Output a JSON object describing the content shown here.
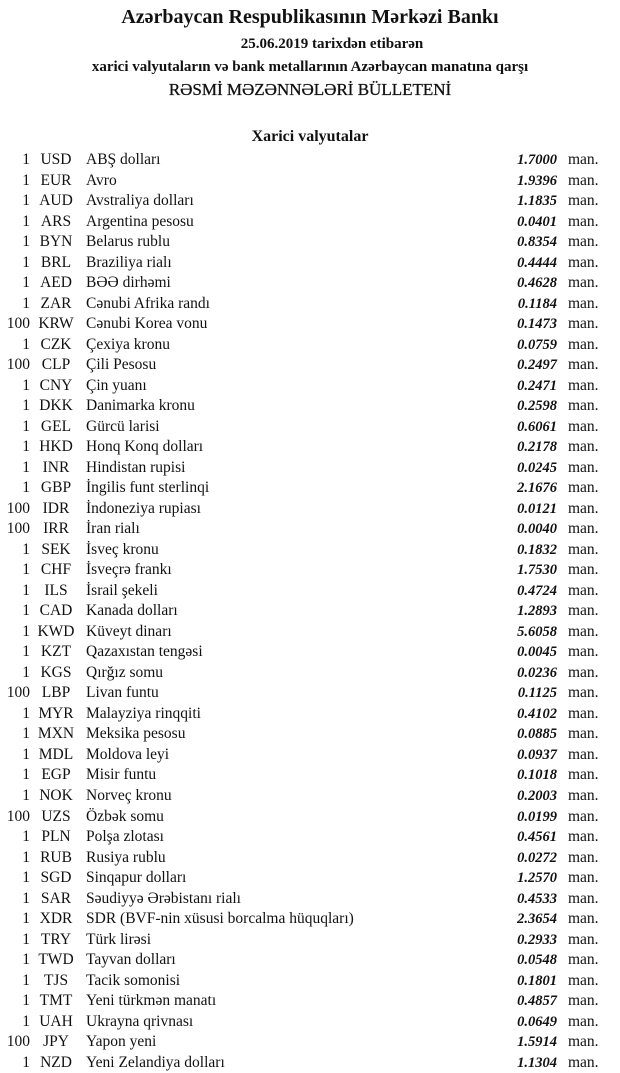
{
  "header": {
    "bank": "Azərbaycan Respublikasının Mərkəzi Bankı",
    "date_line": "25.06.2019  tarixdən etibarən",
    "subtitle": "xarici valyutaların və bank metallarının Azərbaycan manatına qarşı",
    "bulletin_title": "RƏSMİ MƏZƏNNƏLƏRİ BÜLLETENİ",
    "section_title": "Xarici valyutalar"
  },
  "rates": [
    {
      "amount": "1",
      "code": "USD",
      "name": "ABŞ dolları",
      "rate": "1.7000",
      "unit": "man."
    },
    {
      "amount": "1",
      "code": "EUR",
      "name": "Avro",
      "rate": "1.9396",
      "unit": "man."
    },
    {
      "amount": "1",
      "code": "AUD",
      "name": "Avstraliya dolları",
      "rate": "1.1835",
      "unit": "man."
    },
    {
      "amount": "1",
      "code": "ARS",
      "name": "Argentina pesosu",
      "rate": "0.0401",
      "unit": "man."
    },
    {
      "amount": "1",
      "code": "BYN",
      "name": "Belarus rublu",
      "rate": "0.8354",
      "unit": "man."
    },
    {
      "amount": "1",
      "code": "BRL",
      "name": "Braziliya rialı",
      "rate": "0.4444",
      "unit": "man."
    },
    {
      "amount": "1",
      "code": "AED",
      "name": "BƏƏ dirhəmi",
      "rate": "0.4628",
      "unit": "man."
    },
    {
      "amount": "1",
      "code": "ZAR",
      "name": "Cənubi Afrika randı",
      "rate": "0.1184",
      "unit": "man."
    },
    {
      "amount": "100",
      "code": "KRW",
      "name": "Cənubi Korea vonu",
      "rate": "0.1473",
      "unit": "man."
    },
    {
      "amount": "1",
      "code": "CZK",
      "name": "Çexiya kronu",
      "rate": "0.0759",
      "unit": "man."
    },
    {
      "amount": "100",
      "code": "CLP",
      "name": "Çili Pesosu",
      "rate": "0.2497",
      "unit": "man."
    },
    {
      "amount": "1",
      "code": "CNY",
      "name": "Çin yuanı",
      "rate": "0.2471",
      "unit": "man."
    },
    {
      "amount": "1",
      "code": "DKK",
      "name": "Danimarka kronu",
      "rate": "0.2598",
      "unit": "man."
    },
    {
      "amount": "1",
      "code": "GEL",
      "name": "Gürcü larisi",
      "rate": "0.6061",
      "unit": "man."
    },
    {
      "amount": "1",
      "code": "HKD",
      "name": "Honq Konq dolları",
      "rate": "0.2178",
      "unit": "man."
    },
    {
      "amount": "1",
      "code": "INR",
      "name": "Hindistan rupisi",
      "rate": "0.0245",
      "unit": "man."
    },
    {
      "amount": "1",
      "code": "GBP",
      "name": "İngilis funt sterlinqi",
      "rate": "2.1676",
      "unit": "man."
    },
    {
      "amount": "100",
      "code": "IDR",
      "name": "İndoneziya rupiası",
      "rate": "0.0121",
      "unit": "man."
    },
    {
      "amount": "100",
      "code": "IRR",
      "name": "İran rialı",
      "rate": "0.0040",
      "unit": "man."
    },
    {
      "amount": "1",
      "code": "SEK",
      "name": "İsveç kronu",
      "rate": "0.1832",
      "unit": "man."
    },
    {
      "amount": "1",
      "code": "CHF",
      "name": "İsveçrə frankı",
      "rate": "1.7530",
      "unit": "man."
    },
    {
      "amount": "1",
      "code": "ILS",
      "name": "İsrail şekeli",
      "rate": "0.4724",
      "unit": "man."
    },
    {
      "amount": "1",
      "code": "CAD",
      "name": "Kanada dolları",
      "rate": "1.2893",
      "unit": "man."
    },
    {
      "amount": "1",
      "code": "KWD",
      "name": "Küveyt dinarı",
      "rate": "5.6058",
      "unit": "man."
    },
    {
      "amount": "1",
      "code": "KZT",
      "name": "Qazaxıstan tengəsi",
      "rate": "0.0045",
      "unit": "man."
    },
    {
      "amount": "1",
      "code": "KGS",
      "name": "Qırğız somu",
      "rate": "0.0236",
      "unit": "man."
    },
    {
      "amount": "100",
      "code": "LBP",
      "name": "Livan funtu",
      "rate": "0.1125",
      "unit": "man."
    },
    {
      "amount": "1",
      "code": "MYR",
      "name": "Malayziya rinqqiti",
      "rate": "0.4102",
      "unit": "man."
    },
    {
      "amount": "1",
      "code": "MXN",
      "name": "Meksika pesosu",
      "rate": "0.0885",
      "unit": "man."
    },
    {
      "amount": "1",
      "code": "MDL",
      "name": "Moldova leyi",
      "rate": "0.0937",
      "unit": "man."
    },
    {
      "amount": "1",
      "code": "EGP",
      "name": "Misir funtu",
      "rate": "0.1018",
      "unit": "man."
    },
    {
      "amount": "1",
      "code": "NOK",
      "name": "Norveç kronu",
      "rate": "0.2003",
      "unit": "man."
    },
    {
      "amount": "100",
      "code": "UZS",
      "name": "Özbək somu",
      "rate": "0.0199",
      "unit": "man."
    },
    {
      "amount": "1",
      "code": "PLN",
      "name": "Polşa zlotası",
      "rate": "0.4561",
      "unit": "man."
    },
    {
      "amount": "1",
      "code": "RUB",
      "name": "Rusiya rublu",
      "rate": "0.0272",
      "unit": "man."
    },
    {
      "amount": "1",
      "code": "SGD",
      "name": "Sinqapur dolları",
      "rate": "1.2570",
      "unit": "man."
    },
    {
      "amount": "1",
      "code": "SAR",
      "name": "Səudiyyə Ərəbistanı rialı",
      "rate": "0.4533",
      "unit": "man."
    },
    {
      "amount": "1",
      "code": "XDR",
      "name": "SDR (BVF-nin xüsusi borcalma hüquqları)",
      "rate": "2.3654",
      "unit": "man."
    },
    {
      "amount": "1",
      "code": "TRY",
      "name": "Türk lirəsi",
      "rate": "0.2933",
      "unit": "man."
    },
    {
      "amount": "1",
      "code": "TWD",
      "name": "Tayvan dolları",
      "rate": "0.0548",
      "unit": "man."
    },
    {
      "amount": "1",
      "code": "TJS",
      "name": "Tacik somonisi",
      "rate": "0.1801",
      "unit": "man."
    },
    {
      "amount": "1",
      "code": "TMT",
      "name": "Yeni türkmən manatı",
      "rate": "0.4857",
      "unit": "man."
    },
    {
      "amount": "1",
      "code": "UAH",
      "name": "Ukrayna qrivnası",
      "rate": "0.0649",
      "unit": "man."
    },
    {
      "amount": "100",
      "code": "JPY",
      "name": "Yapon yeni",
      "rate": "1.5914",
      "unit": "man."
    },
    {
      "amount": "1",
      "code": "NZD",
      "name": "Yeni Zelandiya dolları",
      "rate": "1.1304",
      "unit": "man."
    }
  ]
}
